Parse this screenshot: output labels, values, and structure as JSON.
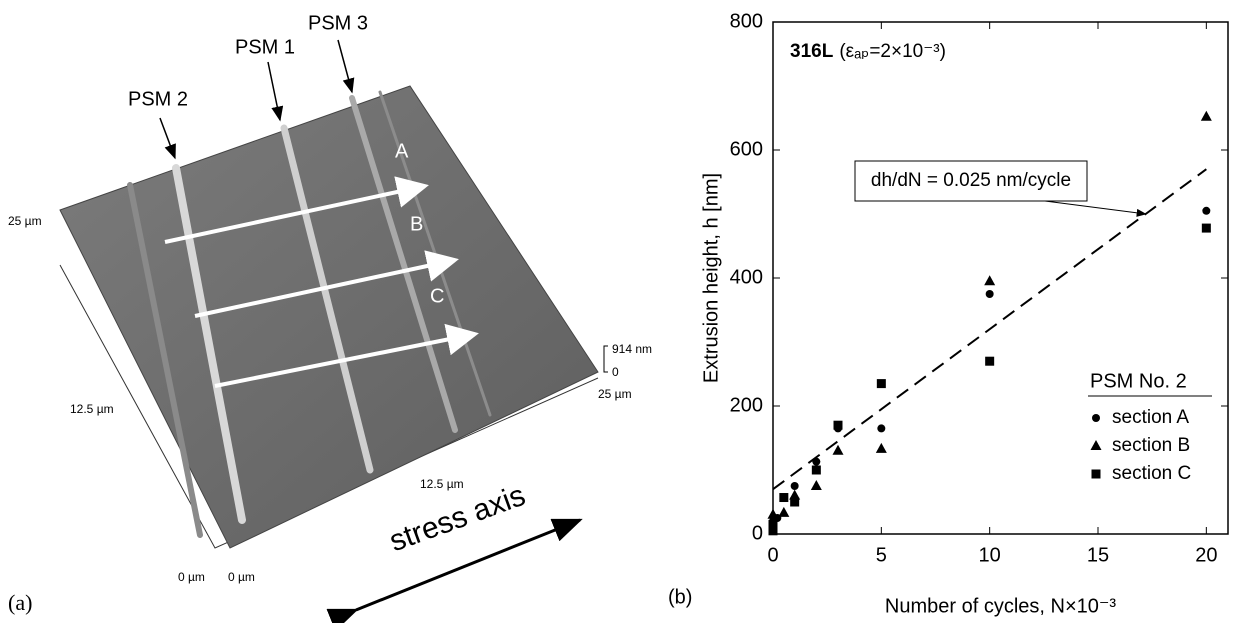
{
  "panel_a": {
    "psm_labels": [
      "PSM 2",
      "PSM 1",
      "PSM 3"
    ],
    "arrow_labels": [
      "A",
      "B",
      "C"
    ],
    "axis_labels": [
      "25 µm",
      "12.5 µm",
      "0 µm",
      "0 µm",
      "12.5 µm",
      "25 µm"
    ],
    "z_labels": [
      "914 nm",
      "0"
    ],
    "stress_axis": "stress axis",
    "panel_label": "(a)"
  },
  "chart_data": {
    "type": "scatter",
    "panel_label": "(b)",
    "title_bold": "316L",
    "title_rest": "(εₐₚ=2×10⁻³)",
    "x_label": "Number of cycles, N×10⁻³",
    "y_label": "Extrusion height, h [nm]",
    "xlim": [
      0,
      21
    ],
    "ylim": [
      0,
      800
    ],
    "xticks": [
      0,
      5,
      10,
      15,
      20
    ],
    "yticks": [
      0,
      200,
      400,
      600,
      800
    ],
    "legend_title": "PSM No. 2",
    "legend": "lower right",
    "series": [
      {
        "name": "section A",
        "color": "#000000",
        "marker": "circle",
        "x": [
          0,
          0,
          0.2,
          1,
          2,
          3,
          5,
          10,
          20
        ],
        "values": [
          10,
          20,
          25,
          75,
          113,
          165,
          165,
          375,
          505
        ]
      },
      {
        "name": "section B",
        "color": "#000000",
        "marker": "triangle",
        "x": [
          0,
          0.5,
          1,
          2,
          3,
          5,
          10,
          20
        ],
        "values": [
          30,
          33,
          60,
          75,
          130,
          133,
          395,
          652
        ]
      },
      {
        "name": "section C",
        "color": "#000000",
        "marker": "square",
        "x": [
          0,
          0,
          0.5,
          1,
          2,
          3,
          5,
          10,
          20
        ],
        "values": [
          5,
          15,
          57,
          50,
          100,
          170,
          235,
          270,
          478
        ]
      }
    ],
    "fit_line": {
      "x": [
        0,
        20
      ],
      "y": [
        70,
        570
      ]
    },
    "annotation": "dh/dN = 0.025 nm/cycle"
  }
}
